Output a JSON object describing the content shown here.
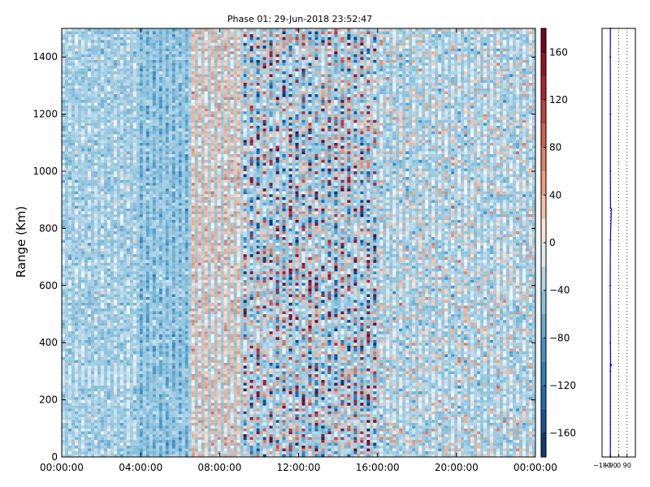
{
  "figure": {
    "title": "Phase 01: 29-Jun-2018 23:52:47"
  },
  "chart_data": [
    {
      "type": "heatmap",
      "title": "Phase 01: 29-Jun-2018 23:52:47",
      "xlabel": "",
      "ylabel": "Range (Km)",
      "x_ticks": [
        "00:00:00",
        "04:00:00",
        "08:00:00",
        "12:00:00",
        "16:00:00",
        "20:00:00",
        "00:00:00"
      ],
      "y_ticks": [
        0,
        200,
        400,
        600,
        800,
        1000,
        1200,
        1400
      ],
      "xlim_hours": [
        0,
        24
      ],
      "ylim": [
        0,
        1500
      ],
      "grid": false,
      "colormap": "RdBu_r",
      "colors": {
        "low": "#053061",
        "mid": "#f7f7f7",
        "high": "#67001f"
      },
      "value_summary": [
        {
          "time_range": [
            "00:00:00",
            "04:00:00"
          ],
          "phase_level": "low",
          "typical_deg": [
            -60,
            0
          ]
        },
        {
          "time_range": [
            "04:00:00",
            "06:30:00"
          ],
          "phase_level": "low",
          "typical_deg": [
            -90,
            -30
          ]
        },
        {
          "time_range": [
            "06:30:00",
            "09:00:00"
          ],
          "phase_level": "slightly positive",
          "typical_deg": [
            0,
            60
          ]
        },
        {
          "time_range": [
            "09:00:00",
            "16:00:00"
          ],
          "phase_level": "noisy, full range",
          "typical_deg": [
            -180,
            180
          ]
        },
        {
          "time_range": [
            "16:00:00",
            "24:00:00"
          ],
          "phase_level": "mixed weak",
          "typical_deg": [
            -60,
            40
          ]
        }
      ],
      "colorbar": {
        "ticks": [
          160,
          120,
          80,
          40,
          0,
          -40,
          -80,
          -120,
          -160
        ],
        "tick_labels": [
          "160",
          "120",
          "80",
          "40",
          "0",
          "−40",
          "−80",
          "−120",
          "−160"
        ],
        "range": [
          -180,
          180
        ]
      }
    },
    {
      "type": "line",
      "title": "",
      "xlabel": "",
      "ylabel": "",
      "x_ticks": [
        -180,
        -90,
        0,
        90
      ],
      "x_tick_labels": [
        "−180",
        "−90",
        "0",
        "90"
      ],
      "xlim": [
        -180,
        180
      ],
      "ylim": [
        0,
        1500
      ],
      "grid": "vertical dotted",
      "line_color": "#0000ff",
      "series": [
        {
          "values": [
            {
              "x": -90,
              "y": 0
            },
            {
              "x": -90,
              "y": 300
            },
            {
              "x": -88,
              "y": 320
            },
            {
              "x": -80,
              "y": 322
            },
            {
              "x": -88,
              "y": 325
            },
            {
              "x": -90,
              "y": 400
            },
            {
              "x": -92,
              "y": 600
            },
            {
              "x": -90,
              "y": 760
            },
            {
              "x": -80,
              "y": 868
            },
            {
              "x": -89,
              "y": 872
            },
            {
              "x": -90,
              "y": 1000
            },
            {
              "x": -90,
              "y": 1200
            },
            {
              "x": -91,
              "y": 1400
            },
            {
              "x": -90,
              "y": 1500
            }
          ]
        }
      ]
    }
  ]
}
